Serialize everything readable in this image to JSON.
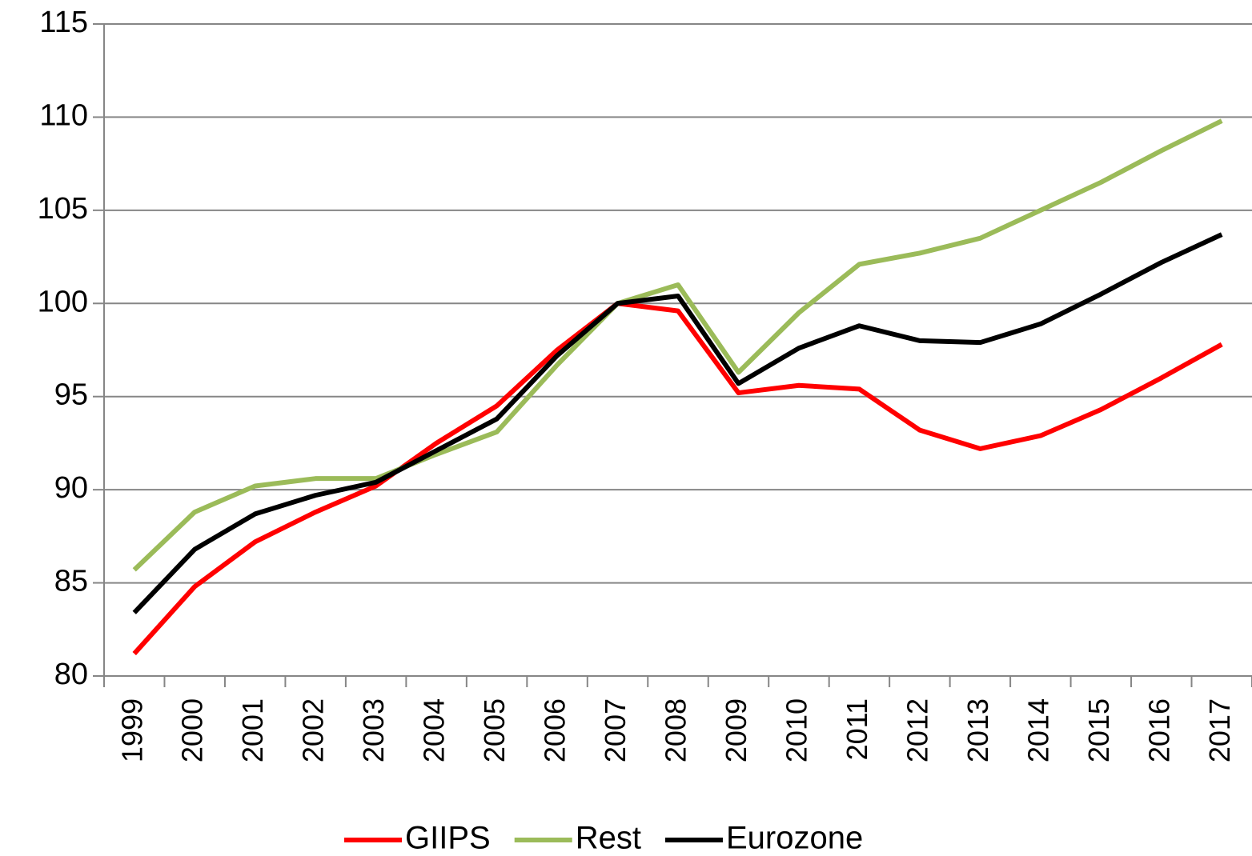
{
  "chart_data": {
    "type": "line",
    "categories": [
      "1999",
      "2000",
      "2001",
      "2002",
      "2003",
      "2004",
      "2005",
      "2006",
      "2007",
      "2008",
      "2009",
      "2010",
      "2011",
      "2012",
      "2013",
      "2014",
      "2015",
      "2016",
      "2017"
    ],
    "series": [
      {
        "name": "GIIPS",
        "color": "#ff0000",
        "values": [
          81.2,
          84.8,
          87.2,
          88.8,
          90.2,
          92.5,
          94.5,
          97.5,
          100,
          99.6,
          95.2,
          95.6,
          95.4,
          93.2,
          92.2,
          92.9,
          94.3,
          96.0,
          97.8
        ]
      },
      {
        "name": "Rest",
        "color": "#9bbb59",
        "values": [
          85.7,
          88.8,
          90.2,
          90.6,
          90.6,
          91.9,
          93.1,
          96.7,
          100,
          101.0,
          96.3,
          99.5,
          102.1,
          102.7,
          103.5,
          105.0,
          106.5,
          108.2,
          109.8
        ]
      },
      {
        "name": "Eurozone",
        "color": "#000000",
        "values": [
          83.4,
          86.8,
          88.7,
          89.7,
          90.4,
          92.1,
          93.8,
          97.2,
          100,
          100.4,
          95.7,
          97.6,
          98.8,
          98.0,
          97.9,
          98.9,
          100.5,
          102.2,
          103.7
        ]
      }
    ],
    "ylim": [
      80,
      115
    ],
    "yticks": [
      80,
      85,
      90,
      95,
      100,
      105,
      110,
      115
    ],
    "grid": true,
    "legend": "bottom"
  }
}
